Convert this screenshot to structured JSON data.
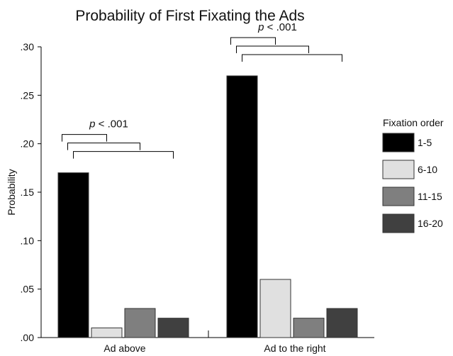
{
  "chart_data": {
    "type": "bar",
    "title": "Probability of First Fixating the Ads",
    "xlabel": "",
    "ylabel": "Probability",
    "ylim": [
      0,
      0.3
    ],
    "yticks": [
      ".00",
      ".05",
      ".10",
      ".15",
      ".20",
      ".25",
      ".30"
    ],
    "ytick_values": [
      0,
      0.05,
      0.1,
      0.15,
      0.2,
      0.25,
      0.3
    ],
    "categories": [
      "Ad above",
      "Ad to the right"
    ],
    "series": [
      {
        "name": "1-5",
        "color": "#000000",
        "values": [
          0.17,
          0.27
        ]
      },
      {
        "name": "6-10",
        "color": "#e0e0e0",
        "values": [
          0.01,
          0.06
        ]
      },
      {
        "name": "11-15",
        "color": "#7f7f7f",
        "values": [
          0.03,
          0.02
        ]
      },
      {
        "name": "16-20",
        "color": "#404040",
        "values": [
          0.02,
          0.03
        ]
      }
    ],
    "legend": {
      "title": "Fixation order",
      "position": "right"
    },
    "annotations": [
      {
        "category": "Ad above",
        "text": "p < .001"
      },
      {
        "category": "Ad to the right",
        "text": "p < .001"
      }
    ],
    "grid": false
  }
}
